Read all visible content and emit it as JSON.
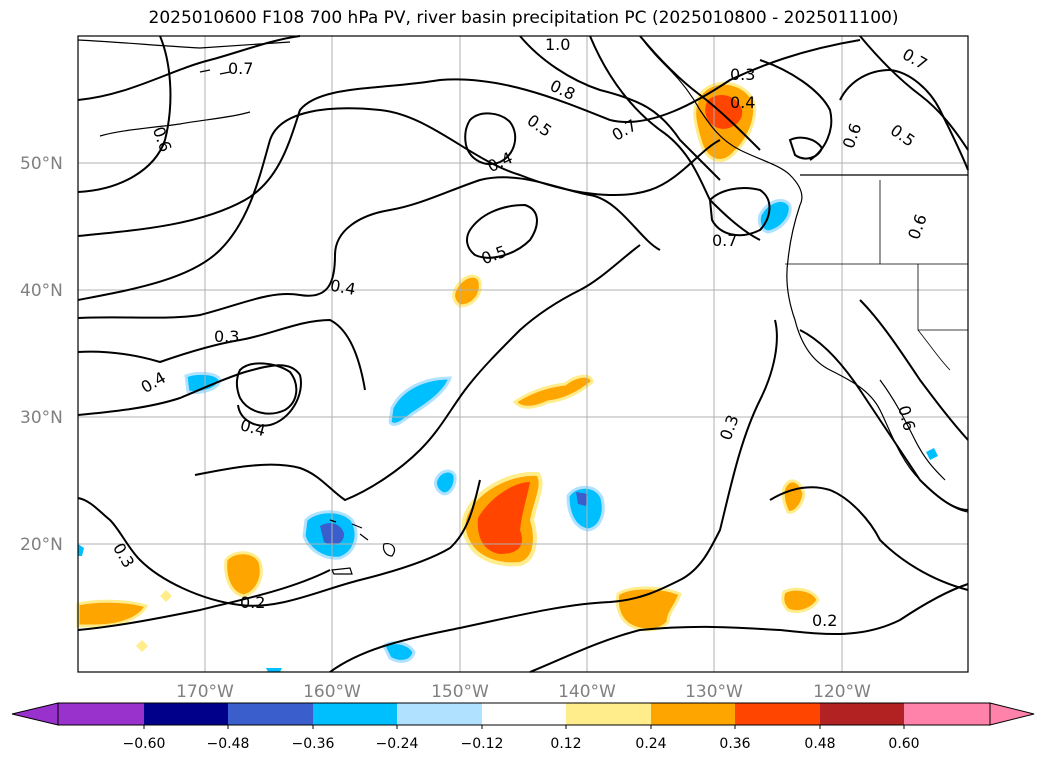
{
  "title": "2025010600 F108 700 hPa PV, river basin precipitation PC (2025010800 - 2025011100)",
  "lat_labels": [
    "50°N",
    "40°N",
    "30°N",
    "20°N"
  ],
  "lon_labels": [
    "170°W",
    "160°W",
    "150°W",
    "140°W",
    "130°W",
    "120°W"
  ],
  "contour_labels": [
    "1.0",
    "0.7",
    "0.8",
    "0.5",
    "0.7",
    "0.3",
    "0.4",
    "0.6",
    "0.7",
    "0.6",
    "0.5",
    "0.6",
    "0.4",
    "0.5",
    "0.7",
    "0.4",
    "0.3",
    "0.4",
    "0.4",
    "0.3",
    "0.6",
    "0.3",
    "0.2",
    "0.2"
  ],
  "colorbar": {
    "ticks": [
      "−0.60",
      "−0.48",
      "−0.36",
      "−0.24",
      "−0.12",
      "0.12",
      "0.24",
      "0.36",
      "0.48",
      "0.60"
    ],
    "colors": [
      "#9932cc",
      "#00008b",
      "#3a5fcd",
      "#00bfff",
      "#b0e2ff",
      "#ffffff",
      "#ffec8b",
      "#ffa500",
      "#ff4500",
      "#b22222",
      "#ff82ab"
    ]
  },
  "colors": {
    "grid": "#b0b0b0",
    "contour": "#000000",
    "coast": "#000000"
  }
}
